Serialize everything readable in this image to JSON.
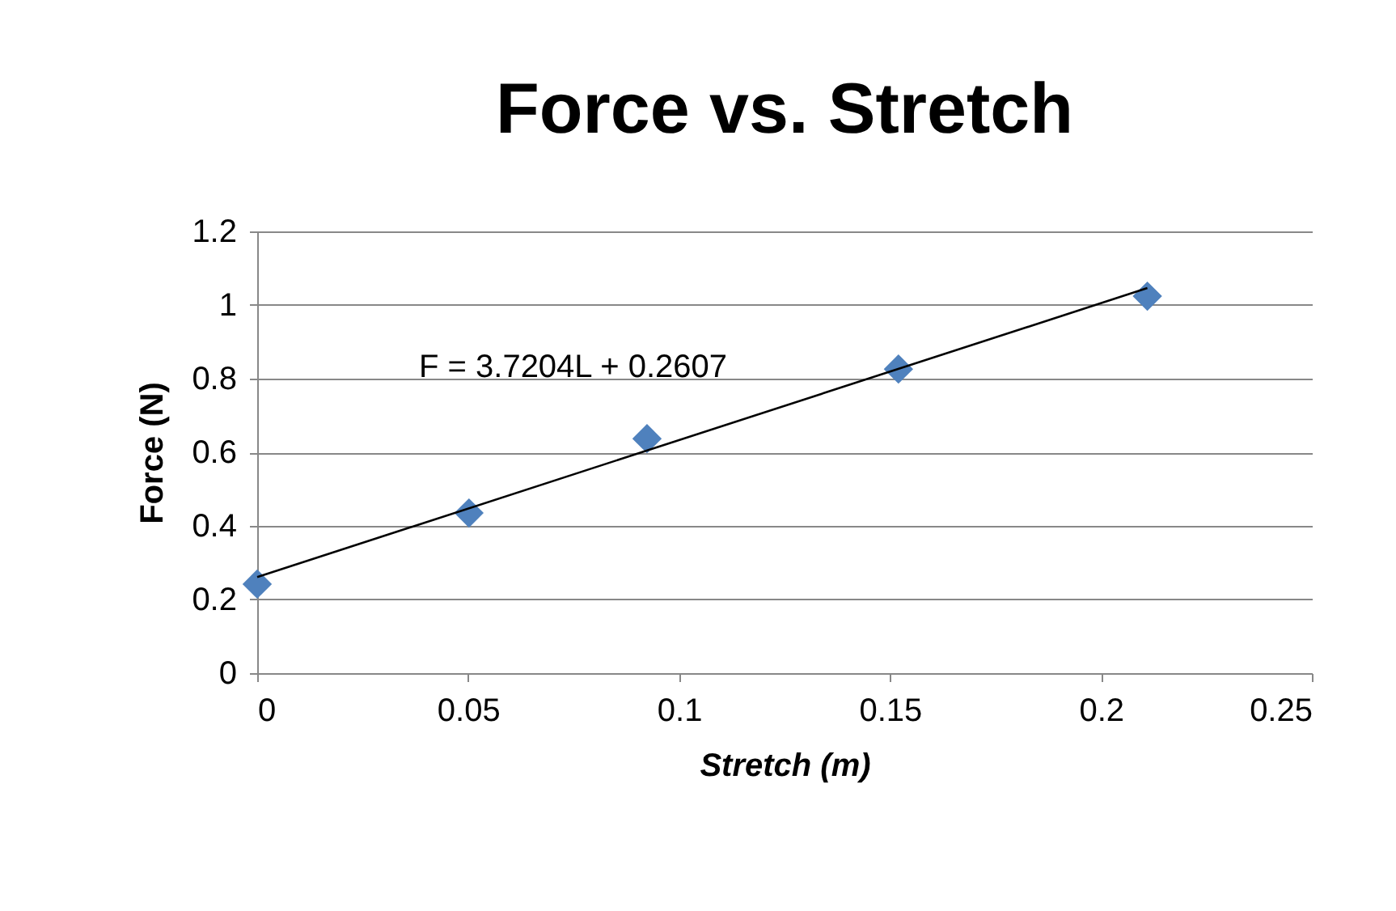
{
  "chart_data": {
    "type": "scatter",
    "title": "Force vs. Stretch",
    "xlabel": "Stretch (m)",
    "ylabel": "Force (N)",
    "annotations": [
      "F = 3.7204L + 0.2607"
    ],
    "series": [
      {
        "color": "#4f81bd",
        "x": [
          0,
          0.0502,
          0.0924,
          0.152,
          0.211
        ],
        "values": [
          0.242,
          0.435,
          0.637,
          0.826,
          1.024
        ],
        "marker": "diamond"
      },
      {
        "type": "line",
        "color": "#000000",
        "x": [
          0,
          0.211
        ],
        "values": [
          0.261,
          1.046
        ],
        "marker": "none"
      }
    ],
    "xlim": [
      0,
      0.25
    ],
    "xticks": [
      0,
      0.05,
      0.1,
      0.15,
      0.2,
      0.25
    ],
    "ylim": [
      0,
      1.2
    ],
    "yticks": [
      0,
      0.2,
      0.4,
      0.6,
      0.8,
      1,
      1.2
    ],
    "grid": "y"
  }
}
